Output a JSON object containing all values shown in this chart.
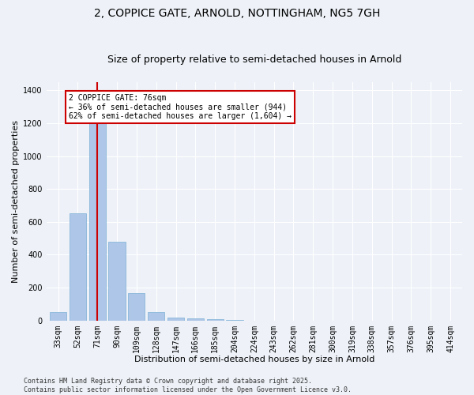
{
  "title1": "2, COPPICE GATE, ARNOLD, NOTTINGHAM, NG5 7GH",
  "title2": "Size of property relative to semi-detached houses in Arnold",
  "xlabel": "Distribution of semi-detached houses by size in Arnold",
  "ylabel": "Number of semi-detached properties",
  "categories": [
    "33sqm",
    "52sqm",
    "71sqm",
    "90sqm",
    "109sqm",
    "128sqm",
    "147sqm",
    "166sqm",
    "185sqm",
    "204sqm",
    "224sqm",
    "243sqm",
    "262sqm",
    "281sqm",
    "300sqm",
    "319sqm",
    "338sqm",
    "357sqm",
    "376sqm",
    "395sqm",
    "414sqm"
  ],
  "values": [
    50,
    650,
    1200,
    480,
    165,
    50,
    20,
    12,
    8,
    5,
    0,
    0,
    0,
    0,
    0,
    0,
    0,
    0,
    0,
    0,
    0
  ],
  "bar_color": "#aec6e8",
  "bar_edge_color": "#7aafd4",
  "highlight_bin_index": 2,
  "highlight_color": "#cc0000",
  "annotation_text": "2 COPPICE GATE: 76sqm\n← 36% of semi-detached houses are smaller (944)\n62% of semi-detached houses are larger (1,604) →",
  "annotation_box_color": "#ffffff",
  "annotation_box_edge": "#cc0000",
  "ylim": [
    0,
    1450
  ],
  "yticks": [
    0,
    200,
    400,
    600,
    800,
    1000,
    1200,
    1400
  ],
  "footer": "Contains HM Land Registry data © Crown copyright and database right 2025.\nContains public sector information licensed under the Open Government Licence v3.0.",
  "bg_color": "#eef2f8",
  "title_fontsize": 10,
  "subtitle_fontsize": 9,
  "axis_label_fontsize": 8,
  "tick_fontsize": 7,
  "footer_fontsize": 6,
  "annotation_fontsize": 7
}
